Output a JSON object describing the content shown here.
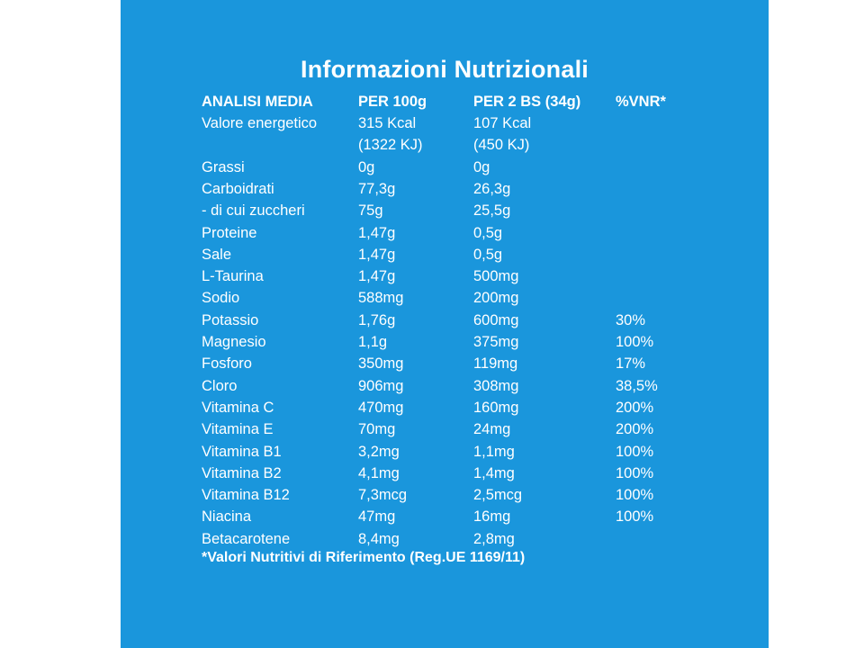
{
  "colors": {
    "panel_background": "#1a96dc",
    "text": "#ffffff",
    "page_background": "#ffffff"
  },
  "title": "Informazioni Nutrizionali",
  "header": [
    "ANALISI MEDIA",
    "PER 100g",
    "PER 2 BS (34g)",
    "%VNR*"
  ],
  "rows": [
    [
      "Valore energetico",
      "315 Kcal",
      "107 Kcal",
      ""
    ],
    [
      "",
      "(1322 KJ)",
      "(450 KJ)",
      ""
    ],
    [
      "Grassi",
      "0g",
      "0g",
      ""
    ],
    [
      "Carboidrati",
      "77,3g",
      "26,3g",
      ""
    ],
    [
      "- di cui zuccheri",
      "75g",
      "25,5g",
      ""
    ],
    [
      "Proteine",
      "1,47g",
      "0,5g",
      ""
    ],
    [
      "Sale",
      "1,47g",
      "0,5g",
      ""
    ],
    [
      "L-Taurina",
      "1,47g",
      "500mg",
      ""
    ],
    [
      "Sodio",
      "588mg",
      "200mg",
      ""
    ],
    [
      "Potassio",
      "1,76g",
      "600mg",
      "30%"
    ],
    [
      "Magnesio",
      "1,1g",
      "375mg",
      "100%"
    ],
    [
      "Fosforo",
      "350mg",
      "119mg",
      "17%"
    ],
    [
      "Cloro",
      "906mg",
      "308mg",
      "38,5%"
    ],
    [
      "Vitamina C",
      "470mg",
      "160mg",
      "200%"
    ],
    [
      "Vitamina E",
      "70mg",
      "24mg",
      "200%"
    ],
    [
      "Vitamina B1",
      "3,2mg",
      "1,1mg",
      "100%"
    ],
    [
      "Vitamina B2",
      "4,1mg",
      "1,4mg",
      "100%"
    ],
    [
      "Vitamina B12",
      "7,3mcg",
      "2,5mcg",
      "100%"
    ],
    [
      "Niacina",
      "47mg",
      "16mg",
      "100%"
    ],
    [
      "Betacarotene",
      "8,4mg",
      "2,8mg",
      ""
    ]
  ],
  "footnote": "*Valori Nutritivi di Riferimento (Reg.UE 1169/11)"
}
